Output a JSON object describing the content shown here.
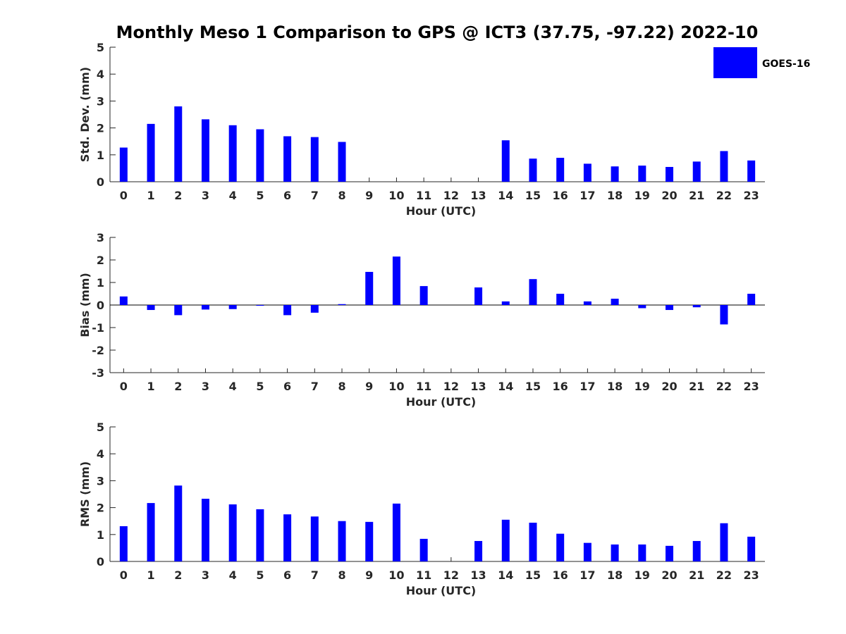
{
  "title": "Monthly Meso 1 Comparison to GPS @ ICT3 (37.75, -97.22) 2022-10",
  "legend": {
    "label": "GOES-16",
    "color": "#0000ff",
    "placement": "top-right"
  },
  "bar_color": "#0000ff",
  "chart_data": [
    {
      "type": "bar",
      "series_name": "GOES-16",
      "xlabel": "Hour (UTC)",
      "ylabel": "Std. Dev. (mm)",
      "ylim": [
        0,
        5
      ],
      "yticks": [
        0,
        1,
        2,
        3,
        4,
        5
      ],
      "categories": [
        "0",
        "1",
        "2",
        "3",
        "4",
        "5",
        "6",
        "7",
        "8",
        "9",
        "10",
        "11",
        "12",
        "13",
        "14",
        "15",
        "16",
        "17",
        "18",
        "19",
        "20",
        "21",
        "22",
        "23"
      ],
      "values": [
        1.27,
        2.15,
        2.8,
        2.32,
        2.1,
        1.95,
        1.69,
        1.66,
        1.48,
        null,
        null,
        null,
        null,
        null,
        1.54,
        0.86,
        0.89,
        0.67,
        0.57,
        0.6,
        0.55,
        0.75,
        1.14,
        0.79
      ]
    },
    {
      "type": "bar",
      "series_name": "GOES-16",
      "xlabel": "Hour (UTC)",
      "ylabel": "Bias (mm)",
      "ylim": [
        -3,
        3
      ],
      "yticks": [
        -3,
        -2,
        -1,
        0,
        1,
        2,
        3
      ],
      "categories": [
        "0",
        "1",
        "2",
        "3",
        "4",
        "5",
        "6",
        "7",
        "8",
        "9",
        "10",
        "11",
        "12",
        "13",
        "14",
        "15",
        "16",
        "17",
        "18",
        "19",
        "20",
        "21",
        "22",
        "23"
      ],
      "values": [
        0.38,
        -0.22,
        -0.45,
        -0.2,
        -0.18,
        -0.02,
        -0.45,
        -0.34,
        0.04,
        1.47,
        2.15,
        0.84,
        null,
        0.78,
        0.16,
        1.15,
        0.5,
        0.16,
        0.28,
        -0.14,
        -0.22,
        -0.1,
        -0.86,
        0.5
      ]
    },
    {
      "type": "bar",
      "series_name": "GOES-16",
      "xlabel": "Hour (UTC)",
      "ylabel": "RMS (mm)",
      "ylim": [
        0,
        5
      ],
      "yticks": [
        0,
        1,
        2,
        3,
        4,
        5
      ],
      "categories": [
        "0",
        "1",
        "2",
        "3",
        "4",
        "5",
        "6",
        "7",
        "8",
        "9",
        "10",
        "11",
        "12",
        "13",
        "14",
        "15",
        "16",
        "17",
        "18",
        "19",
        "20",
        "21",
        "22",
        "23"
      ],
      "values": [
        1.31,
        2.17,
        2.82,
        2.33,
        2.12,
        1.94,
        1.75,
        1.67,
        1.5,
        1.47,
        2.15,
        0.84,
        null,
        0.76,
        1.55,
        1.44,
        1.03,
        0.69,
        0.63,
        0.63,
        0.58,
        0.76,
        1.42,
        0.92
      ]
    }
  ]
}
